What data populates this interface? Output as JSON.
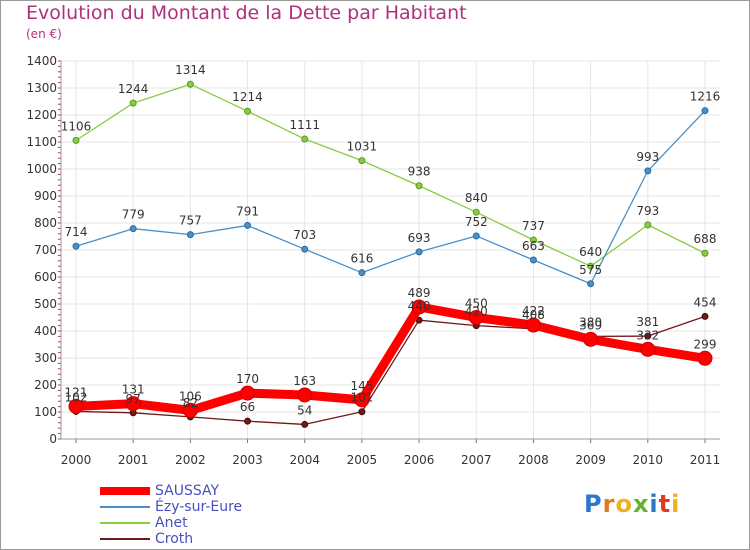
{
  "title": "Evolution du Montant de la Dette par Habitant",
  "unit": "(en €)",
  "logo": "Proxiti",
  "chart_data": {
    "type": "line",
    "x": [
      "2000",
      "2001",
      "2002",
      "2003",
      "2004",
      "2005",
      "2006",
      "2007",
      "2008",
      "2009",
      "2010",
      "2011"
    ],
    "ylim": [
      0,
      1400
    ],
    "yticks": [
      0,
      100,
      200,
      300,
      400,
      500,
      600,
      700,
      800,
      900,
      1000,
      1100,
      1200,
      1300,
      1400
    ],
    "grid": true,
    "legend_position": "bottom-left",
    "series": [
      {
        "name": "SAUSSAY",
        "color": "#ff0000",
        "values": [
          121,
          131,
          106,
          170,
          163,
          145,
          489,
          450,
          422,
          369,
          332,
          299
        ],
        "labels": [
          "121",
          "131",
          "106",
          "170",
          "163",
          "145",
          "489",
          "450",
          "422",
          "369",
          "332",
          "299"
        ]
      },
      {
        "name": "Ézy-sur-Eure",
        "color": "#4a90c8",
        "values": [
          714,
          779,
          757,
          791,
          703,
          616,
          693,
          752,
          663,
          575,
          993,
          1216
        ],
        "labels": [
          "714",
          "779",
          "757",
          "791",
          "703",
          "616",
          "693",
          "752",
          "663",
          "575",
          "993",
          "1216"
        ]
      },
      {
        "name": "Anet",
        "color": "#88cc44",
        "values": [
          1106,
          1244,
          1314,
          1214,
          1111,
          1031,
          938,
          840,
          737,
          640,
          793,
          688
        ],
        "labels": [
          "1106",
          "1244",
          "1314",
          "1214",
          "1111",
          "1031",
          "938",
          "840",
          "737",
          "640",
          "793",
          "688"
        ]
      },
      {
        "name": "Croth",
        "color": "#6e1a1a",
        "values": [
          102,
          97,
          82,
          66,
          54,
          101,
          440,
          420,
          408,
          380,
          381,
          454
        ],
        "labels": [
          "102",
          "97",
          "82",
          "66",
          "54",
          "101",
          "440",
          "420",
          "408",
          "380",
          "381",
          "454"
        ]
      }
    ]
  }
}
